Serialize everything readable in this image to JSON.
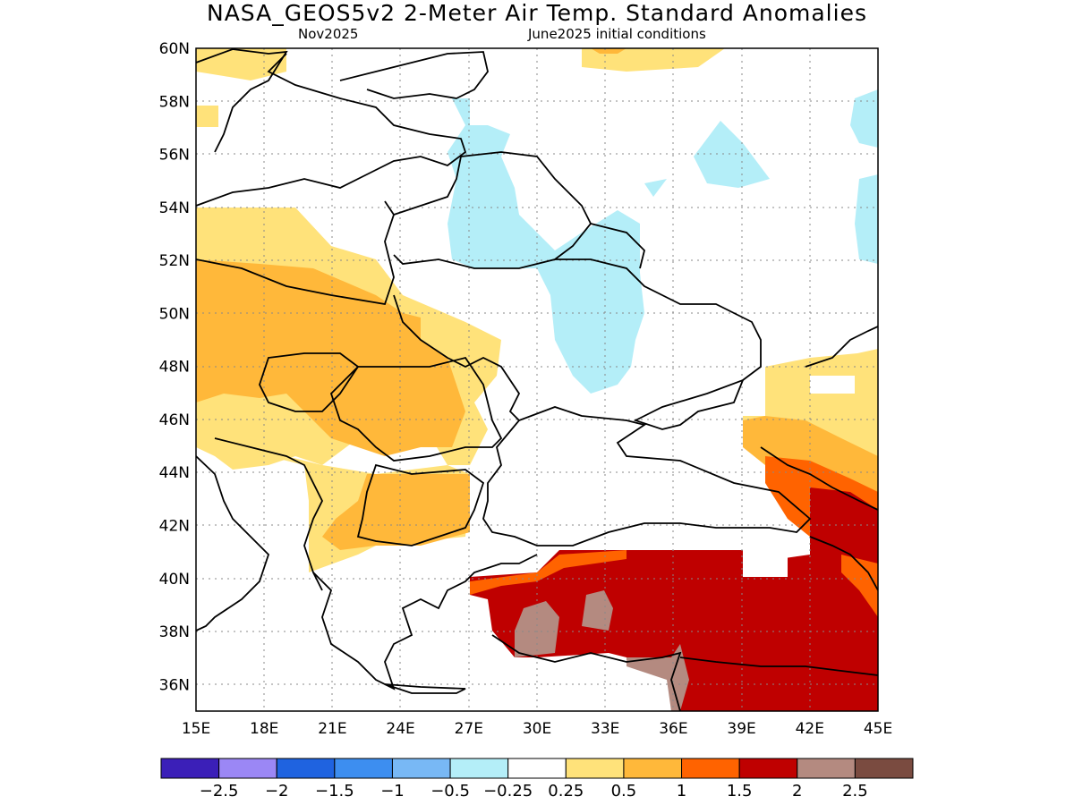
{
  "title": "NASA_GEOS5v2 2-Meter Air Temp. Standard Anomalies",
  "subtitle_left": "Nov2025",
  "subtitle_right": "June2025 initial conditions",
  "map": {
    "lon_range": [
      15,
      45
    ],
    "lat_range": [
      35,
      60
    ],
    "lon_ticks": [
      "15E",
      "18E",
      "21E",
      "24E",
      "27E",
      "30E",
      "33E",
      "36E",
      "39E",
      "42E",
      "45E"
    ],
    "lat_ticks": [
      "60N",
      "58N",
      "56N",
      "54N",
      "52N",
      "50N",
      "48N",
      "46N",
      "44N",
      "42N",
      "40N",
      "38N",
      "36N"
    ],
    "gridlines": true
  },
  "colorbar": {
    "colors": [
      "#3b1fb8",
      "#9b87f5",
      "#1f63e0",
      "#3d8ef0",
      "#78b8f5",
      "#b4eef8",
      "#ffffff",
      "#ffe27a",
      "#ffb83a",
      "#ff6300",
      "#bf0000",
      "#b48a80",
      "#7a4b40"
    ],
    "labels": [
      "−2.5",
      "−2",
      "−1.5",
      "−1",
      "−0.5",
      "−0.25",
      "0.25",
      "0.5",
      "1",
      "1.5",
      "2",
      "2.5"
    ]
  }
}
